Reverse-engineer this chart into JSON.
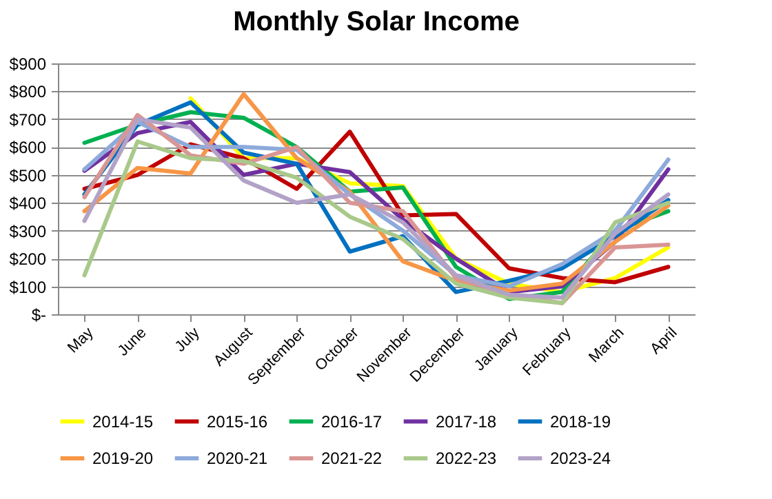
{
  "chart_data": {
    "type": "line",
    "title": "Monthly Solar Income",
    "categories": [
      "May",
      "June",
      "July",
      "August",
      "September",
      "October",
      "November",
      "December",
      "January",
      "February",
      "March",
      "April"
    ],
    "series": [
      {
        "name": "2014-15",
        "color": "#ffff00",
        "values": [
          null,
          null,
          775,
          560,
          560,
          470,
          460,
          200,
          110,
          80,
          130,
          240
        ]
      },
      {
        "name": "2015-16",
        "color": "#c00000",
        "values": [
          450,
          500,
          610,
          560,
          450,
          655,
          355,
          360,
          165,
          130,
          115,
          170
        ]
      },
      {
        "name": "2016-17",
        "color": "#00b050",
        "values": [
          615,
          680,
          725,
          705,
          600,
          440,
          455,
          170,
          55,
          80,
          300,
          370
        ]
      },
      {
        "name": "2017-18",
        "color": "#7030a0",
        "values": [
          515,
          650,
          690,
          500,
          540,
          510,
          340,
          200,
          80,
          100,
          260,
          520
        ]
      },
      {
        "name": "2018-19",
        "color": "#0070c0",
        "values": [
          430,
          680,
          760,
          580,
          540,
          225,
          280,
          80,
          120,
          165,
          280,
          410
        ]
      },
      {
        "name": "2019-20",
        "color": "#f79646",
        "values": [
          370,
          525,
          505,
          790,
          560,
          440,
          190,
          120,
          85,
          110,
          260,
          390
        ]
      },
      {
        "name": "2020-21",
        "color": "#8eaadb",
        "values": [
          520,
          690,
          600,
          600,
          590,
          430,
          300,
          140,
          100,
          180,
          300,
          555
        ]
      },
      {
        "name": "2021-22",
        "color": "#d99694",
        "values": [
          420,
          715,
          570,
          540,
          600,
          400,
          370,
          130,
          70,
          40,
          240,
          250
        ]
      },
      {
        "name": "2022-23",
        "color": "#a9c98a",
        "values": [
          140,
          620,
          560,
          550,
          490,
          350,
          270,
          110,
          60,
          40,
          330,
          400
        ]
      },
      {
        "name": "2023-24",
        "color": "#b3a2c7",
        "values": [
          335,
          700,
          670,
          480,
          400,
          430,
          330,
          140,
          70,
          60,
          290,
          430
        ]
      }
    ],
    "ylim": [
      0,
      900
    ],
    "yticks": [
      {
        "value": 0,
        "label": "$-"
      },
      {
        "value": 100,
        "label": "$100"
      },
      {
        "value": 200,
        "label": "$200"
      },
      {
        "value": 300,
        "label": "$300"
      },
      {
        "value": 400,
        "label": "$400"
      },
      {
        "value": 500,
        "label": "$500"
      },
      {
        "value": 600,
        "label": "$600"
      },
      {
        "value": 700,
        "label": "$700"
      },
      {
        "value": 800,
        "label": "$800"
      },
      {
        "value": 900,
        "label": "$900"
      }
    ],
    "grid": "y",
    "legend": "bottom",
    "line_style": "solid"
  }
}
